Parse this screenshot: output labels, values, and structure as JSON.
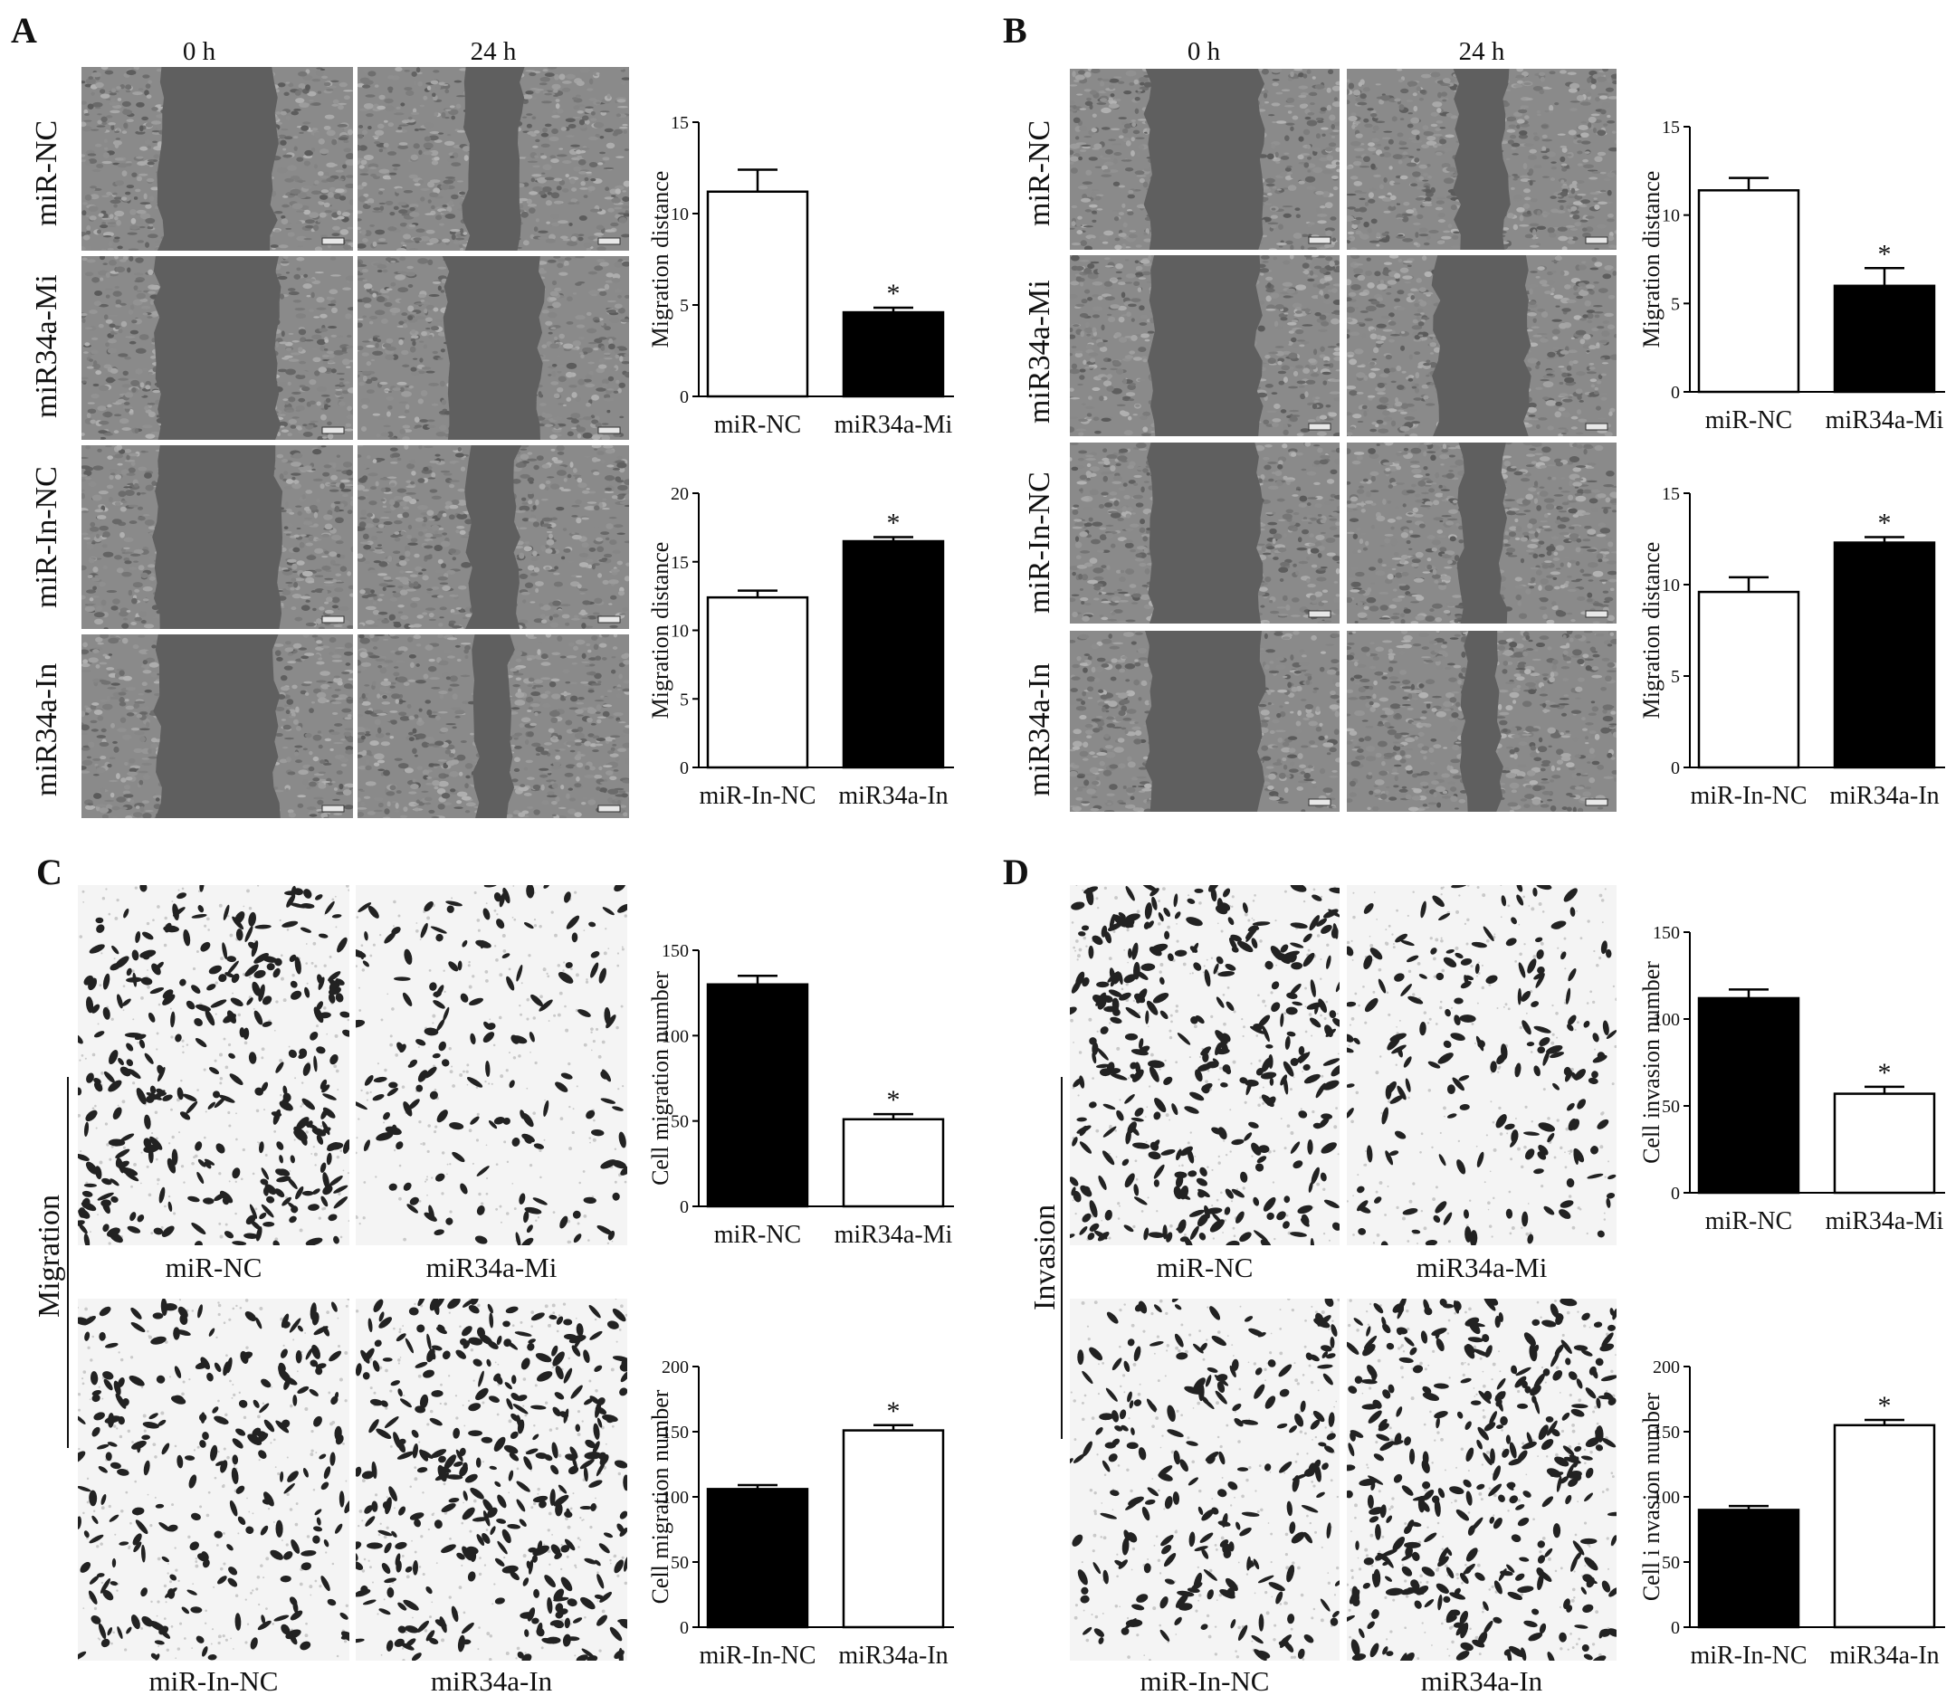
{
  "panels": {
    "A": {
      "letter": "A",
      "time_labels": [
        "0 h",
        "24 h"
      ],
      "row_labels": [
        "miR-NC",
        "miR34a-Mi",
        "miR-In-NC",
        "miR34a-In"
      ]
    },
    "B": {
      "letter": "B",
      "time_labels": [
        "0 h",
        "24 h"
      ],
      "row_labels": [
        "miR-NC",
        "miR34a-Mi",
        "miR-In-NC",
        "miR34a-In"
      ]
    },
    "C": {
      "letter": "C",
      "side_label": "Migration",
      "captions": [
        "miR-NC",
        "miR34a-Mi",
        "miR-In-NC",
        "miR34a-In"
      ]
    },
    "D": {
      "letter": "D",
      "side_label": "Invasion",
      "captions": [
        "miR-NC",
        "miR34a-Mi",
        "miR-In-NC",
        "miR34a-In"
      ]
    }
  },
  "colors": {
    "bar_filled": "#000000",
    "bar_open": "#ffffff",
    "scratch_gap": "#5f5f5f",
    "scratch_cells": "#8a8a8a",
    "transwell_bg": "#f4f4f4",
    "transwell_cells": "#222222"
  },
  "chart_data": [
    {
      "id": "A-top",
      "type": "bar",
      "categories": [
        "miR-NC",
        "miR34a-Mi"
      ],
      "values": [
        11.2,
        4.6
      ],
      "errors": [
        1.2,
        0.25
      ],
      "fills": [
        "open",
        "filled"
      ],
      "significance": [
        "",
        "*"
      ],
      "ylabel": "Migration distance",
      "ylim": [
        0,
        15
      ],
      "yticks": [
        0,
        5,
        10,
        15
      ]
    },
    {
      "id": "A-bottom",
      "type": "bar",
      "categories": [
        "miR-In-NC",
        "miR34a-In"
      ],
      "values": [
        12.4,
        16.5
      ],
      "errors": [
        0.5,
        0.3
      ],
      "fills": [
        "open",
        "filled"
      ],
      "significance": [
        "",
        "*"
      ],
      "ylabel": "Migration distance",
      "ylim": [
        0,
        20
      ],
      "yticks": [
        0,
        5,
        10,
        15,
        20
      ]
    },
    {
      "id": "B-top",
      "type": "bar",
      "categories": [
        "miR-NC",
        "miR34a-Mi"
      ],
      "values": [
        11.4,
        6.0
      ],
      "errors": [
        0.7,
        1.0
      ],
      "fills": [
        "open",
        "filled"
      ],
      "significance": [
        "",
        "*"
      ],
      "ylabel": "Migration distance",
      "ylim": [
        0,
        15
      ],
      "yticks": [
        0,
        5,
        10,
        15
      ]
    },
    {
      "id": "B-bottom",
      "type": "bar",
      "categories": [
        "miR-In-NC",
        "miR34a-In"
      ],
      "values": [
        9.6,
        12.3
      ],
      "errors": [
        0.8,
        0.3
      ],
      "fills": [
        "open",
        "filled"
      ],
      "significance": [
        "",
        "*"
      ],
      "ylabel": "Migration distance",
      "ylim": [
        0,
        15
      ],
      "yticks": [
        0,
        5,
        10,
        15
      ]
    },
    {
      "id": "C-top",
      "type": "bar",
      "categories": [
        "miR-NC",
        "miR34a-Mi"
      ],
      "values": [
        130,
        51
      ],
      "errors": [
        5,
        3
      ],
      "fills": [
        "filled",
        "open"
      ],
      "significance": [
        "",
        "*"
      ],
      "ylabel": "Cell migration number",
      "ylim": [
        0,
        150
      ],
      "yticks": [
        0,
        50,
        100,
        150
      ]
    },
    {
      "id": "C-bottom",
      "type": "bar",
      "categories": [
        "miR-In-NC",
        "miR34a-In"
      ],
      "values": [
        106,
        151
      ],
      "errors": [
        3,
        4
      ],
      "fills": [
        "filled",
        "open"
      ],
      "significance": [
        "",
        "*"
      ],
      "ylabel": "Cell migration number",
      "ylim": [
        0,
        200
      ],
      "yticks": [
        0,
        50,
        100,
        150,
        200
      ]
    },
    {
      "id": "D-top",
      "type": "bar",
      "categories": [
        "miR-NC",
        "miR34a-Mi"
      ],
      "values": [
        112,
        57
      ],
      "errors": [
        5,
        4
      ],
      "fills": [
        "filled",
        "open"
      ],
      "significance": [
        "",
        "*"
      ],
      "ylabel": "Cell invasion number",
      "ylim": [
        0,
        150
      ],
      "yticks": [
        0,
        50,
        100,
        150
      ]
    },
    {
      "id": "D-bottom",
      "type": "bar",
      "categories": [
        "miR-In-NC",
        "miR34a-In"
      ],
      "values": [
        90,
        155
      ],
      "errors": [
        3,
        4
      ],
      "fills": [
        "filled",
        "open"
      ],
      "significance": [
        "",
        "*"
      ],
      "ylabel": "Cell i nvasion number",
      "ylim": [
        0,
        200
      ],
      "yticks": [
        0,
        50,
        100,
        150,
        200
      ]
    }
  ]
}
